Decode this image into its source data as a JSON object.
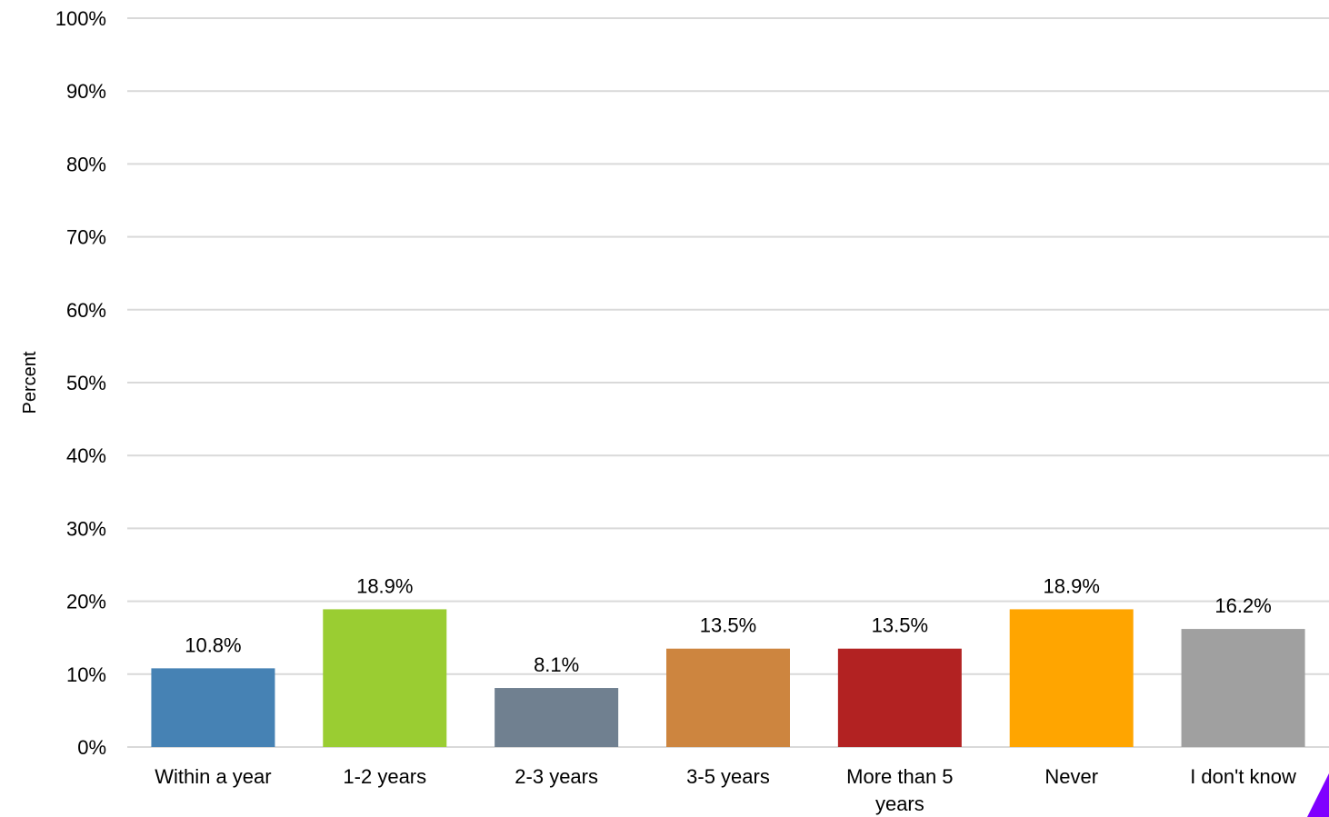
{
  "chart_data": {
    "type": "bar",
    "title": "",
    "xlabel": "",
    "ylabel": "Percent",
    "ylim": [
      0,
      100
    ],
    "y_ticks": [
      "0%",
      "10%",
      "20%",
      "30%",
      "40%",
      "50%",
      "60%",
      "70%",
      "80%",
      "90%",
      "100%"
    ],
    "grid": true,
    "legend": "none",
    "categories": [
      [
        "Within a year"
      ],
      [
        "1-2 years"
      ],
      [
        "2-3 years"
      ],
      [
        "3-5 years"
      ],
      [
        "More than 5",
        "years"
      ],
      [
        "Never"
      ],
      [
        "I don't know"
      ]
    ],
    "values": [
      10.8,
      18.9,
      8.1,
      13.5,
      13.5,
      18.9,
      16.2
    ],
    "data_labels": [
      "10.8%",
      "18.9%",
      "8.1%",
      "13.5%",
      "13.5%",
      "18.9%",
      "16.2%"
    ],
    "colors": [
      "#4682B4",
      "#9ACD32",
      "#708090",
      "#CD853F",
      "#B22222",
      "#FFA500",
      "#A0A0A0"
    ],
    "grid_color": "#D9D9D9",
    "corner_mark_color": "#7F00FF"
  }
}
